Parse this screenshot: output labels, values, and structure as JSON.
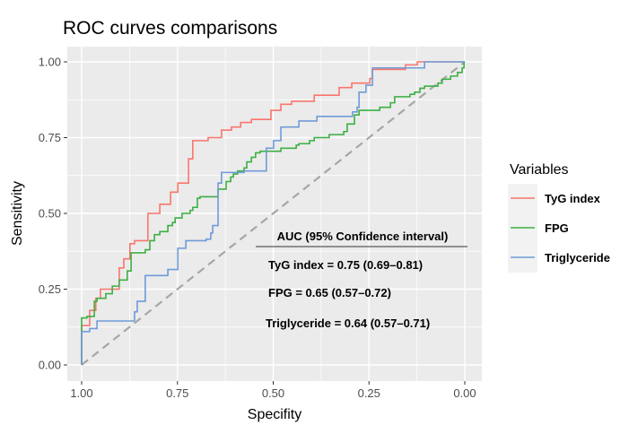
{
  "chart_data": {
    "type": "line",
    "title": "ROC curves comparisons",
    "xlabel": "Specifity",
    "ylabel": "Sensitivity",
    "xlim": [
      1.0,
      0.0
    ],
    "ylim": [
      0.0,
      1.0
    ],
    "x_reversed": true,
    "grid": true,
    "x_ticks": [
      "1.00",
      "0.75",
      "0.50",
      "0.25",
      "0.00"
    ],
    "y_ticks": [
      "0.00",
      "0.25",
      "0.50",
      "0.75",
      "1.00"
    ],
    "legend": {
      "title": "Variables",
      "position": "right"
    },
    "series": [
      {
        "name": "TyG index",
        "color": "#F8766D",
        "points": [
          [
            1,
            0
          ],
          [
            1,
            0.13
          ],
          [
            0.979,
            0.18
          ],
          [
            0.963,
            0.22
          ],
          [
            0.951,
            0.25
          ],
          [
            0.902,
            0.32
          ],
          [
            0.89,
            0.35
          ],
          [
            0.874,
            0.4
          ],
          [
            0.862,
            0.41
          ],
          [
            0.827,
            0.5
          ],
          [
            0.796,
            0.53
          ],
          [
            0.768,
            0.57
          ],
          [
            0.749,
            0.6
          ],
          [
            0.721,
            0.68
          ],
          [
            0.71,
            0.74
          ],
          [
            0.67,
            0.75
          ],
          [
            0.635,
            0.775
          ],
          [
            0.609,
            0.785
          ],
          [
            0.585,
            0.8
          ],
          [
            0.557,
            0.81
          ],
          [
            0.506,
            0.84
          ],
          [
            0.48,
            0.86
          ],
          [
            0.452,
            0.87
          ],
          [
            0.393,
            0.89
          ],
          [
            0.328,
            0.915
          ],
          [
            0.295,
            0.93
          ],
          [
            0.248,
            0.945
          ],
          [
            0.241,
            0.975
          ],
          [
            0.155,
            0.99
          ],
          [
            0.124,
            1.0
          ],
          [
            0,
            1.0
          ]
        ]
      },
      {
        "name": "FPG",
        "color": "#3CB043",
        "points": [
          [
            1,
            0
          ],
          [
            1,
            0.155
          ],
          [
            0.986,
            0.16
          ],
          [
            0.967,
            0.21
          ],
          [
            0.96,
            0.22
          ],
          [
            0.937,
            0.235
          ],
          [
            0.92,
            0.26
          ],
          [
            0.902,
            0.28
          ],
          [
            0.881,
            0.31
          ],
          [
            0.871,
            0.37
          ],
          [
            0.834,
            0.38
          ],
          [
            0.822,
            0.41
          ],
          [
            0.81,
            0.43
          ],
          [
            0.796,
            0.44
          ],
          [
            0.775,
            0.46
          ],
          [
            0.763,
            0.47
          ],
          [
            0.756,
            0.485
          ],
          [
            0.738,
            0.5
          ],
          [
            0.717,
            0.51
          ],
          [
            0.71,
            0.52
          ],
          [
            0.698,
            0.55
          ],
          [
            0.691,
            0.555
          ],
          [
            0.644,
            0.58
          ],
          [
            0.623,
            0.605
          ],
          [
            0.611,
            0.62
          ],
          [
            0.604,
            0.63
          ],
          [
            0.593,
            0.64
          ],
          [
            0.576,
            0.65
          ],
          [
            0.569,
            0.67
          ],
          [
            0.557,
            0.685
          ],
          [
            0.546,
            0.7
          ],
          [
            0.534,
            0.705
          ],
          [
            0.48,
            0.715
          ],
          [
            0.44,
            0.725
          ],
          [
            0.433,
            0.73
          ],
          [
            0.405,
            0.74
          ],
          [
            0.393,
            0.75
          ],
          [
            0.354,
            0.76
          ],
          [
            0.316,
            0.77
          ],
          [
            0.307,
            0.795
          ],
          [
            0.288,
            0.825
          ],
          [
            0.276,
            0.84
          ],
          [
            0.222,
            0.85
          ],
          [
            0.194,
            0.865
          ],
          [
            0.183,
            0.885
          ],
          [
            0.143,
            0.893
          ],
          [
            0.131,
            0.9
          ],
          [
            0.117,
            0.913
          ],
          [
            0.105,
            0.92
          ],
          [
            0.07,
            0.93
          ],
          [
            0.059,
            0.943
          ],
          [
            0.037,
            0.953
          ],
          [
            0.019,
            0.965
          ],
          [
            0.007,
            0.98
          ],
          [
            0.002,
            1.0
          ],
          [
            0,
            1.0
          ]
        ]
      },
      {
        "name": "Triglyceride",
        "color": "#6F9BD8",
        "points": [
          [
            1,
            0
          ],
          [
            1,
            0.11
          ],
          [
            0.979,
            0.12
          ],
          [
            0.96,
            0.145
          ],
          [
            0.862,
            0.175
          ],
          [
            0.855,
            0.21
          ],
          [
            0.834,
            0.295
          ],
          [
            0.775,
            0.315
          ],
          [
            0.749,
            0.385
          ],
          [
            0.728,
            0.41
          ],
          [
            0.675,
            0.415
          ],
          [
            0.663,
            0.435
          ],
          [
            0.658,
            0.46
          ],
          [
            0.644,
            0.485
          ],
          [
            0.644,
            0.6
          ],
          [
            0.635,
            0.635
          ],
          [
            0.576,
            0.64
          ],
          [
            0.518,
            0.665
          ],
          [
            0.518,
            0.715
          ],
          [
            0.499,
            0.74
          ],
          [
            0.48,
            0.785
          ],
          [
            0.433,
            0.805
          ],
          [
            0.386,
            0.82
          ],
          [
            0.293,
            0.835
          ],
          [
            0.281,
            0.85
          ],
          [
            0.276,
            0.9
          ],
          [
            0.258,
            0.923
          ],
          [
            0.241,
            0.98
          ],
          [
            0.105,
            1.0
          ],
          [
            0,
            1.0
          ]
        ]
      }
    ],
    "reference_line": {
      "from": [
        1,
        0
      ],
      "to": [
        0,
        1
      ],
      "style": "dashed",
      "color": "#A6A6A6"
    },
    "annotations": {
      "header": "AUC (95% Confidence interval)",
      "lines": [
        "TyG index = 0.75 (0.69–0.81)",
        "FPG = 0.65 (0.57–0.72)",
        "Triglyceride = 0.64 (0.57–0.71)"
      ]
    }
  }
}
